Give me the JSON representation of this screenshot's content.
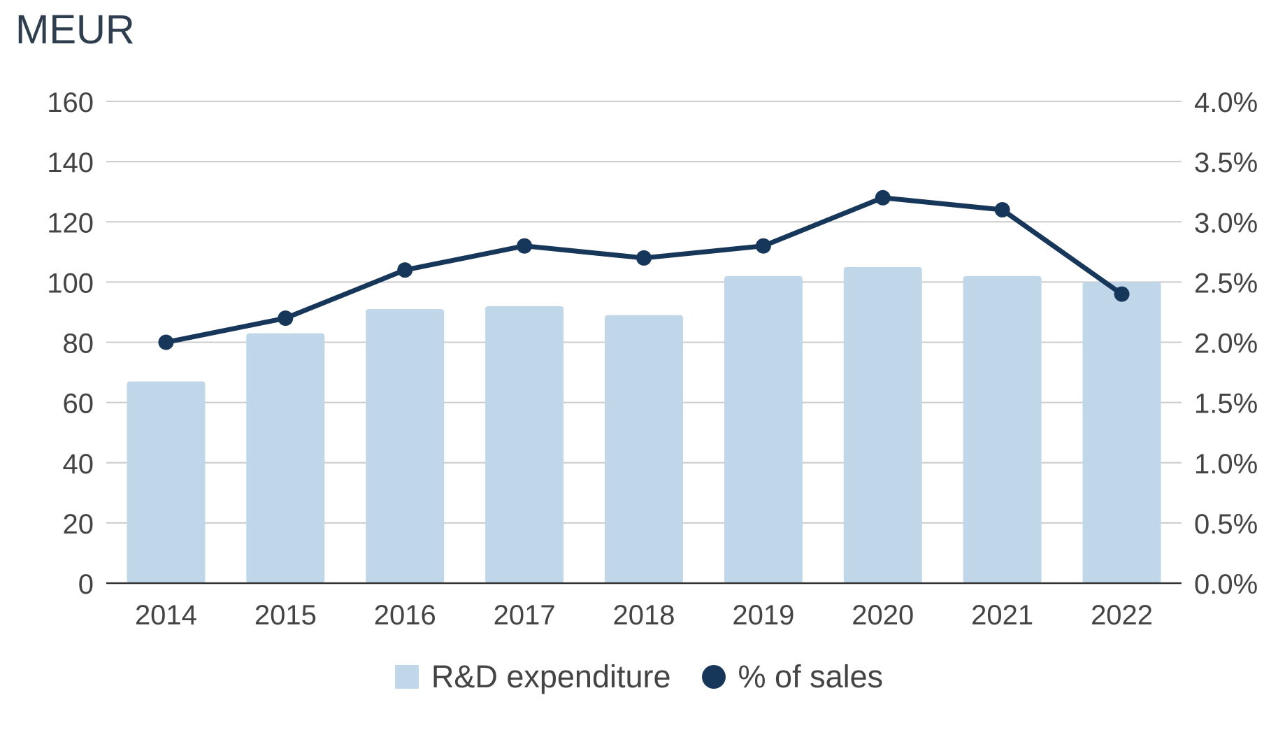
{
  "chart_data": {
    "type": "bar",
    "title": "",
    "unit_label": "MEUR",
    "categories": [
      "2014",
      "2015",
      "2016",
      "2017",
      "2018",
      "2019",
      "2020",
      "2021",
      "2022"
    ],
    "series": [
      {
        "name": "R&D expenditure",
        "type": "bar",
        "axis": "left",
        "values": [
          67,
          83,
          91,
          92,
          89,
          102,
          105,
          102,
          100
        ]
      },
      {
        "name": "% of sales",
        "type": "line",
        "axis": "right",
        "values": [
          2.0,
          2.2,
          2.6,
          2.8,
          2.7,
          2.8,
          3.2,
          3.1,
          2.4
        ]
      }
    ],
    "y_left": {
      "min": 0,
      "max": 160,
      "ticks": [
        "0",
        "20",
        "40",
        "60",
        "80",
        "100",
        "120",
        "140",
        "160"
      ]
    },
    "y_right": {
      "min": 0,
      "max": 4.0,
      "ticks": [
        "0.0%",
        "0.5%",
        "1.0%",
        "1.5%",
        "2.0%",
        "2.5%",
        "3.0%",
        "3.5%",
        "4.0%"
      ]
    },
    "grid": true,
    "legend": "bottom",
    "colors": {
      "bar": "#bfd7e9",
      "line": "#17375a",
      "grid": "#cccccc",
      "text": "#444444"
    }
  }
}
